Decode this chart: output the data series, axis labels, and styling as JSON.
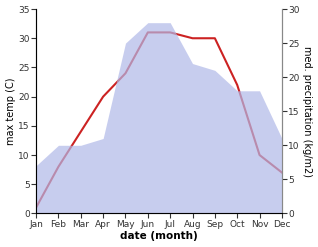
{
  "months": [
    "Jan",
    "Feb",
    "Mar",
    "Apr",
    "May",
    "Jun",
    "Jul",
    "Aug",
    "Sep",
    "Oct",
    "Nov",
    "Dec"
  ],
  "temperature": [
    1,
    8,
    14,
    20,
    24,
    31,
    31,
    30,
    30,
    22,
    10,
    7
  ],
  "precipitation": [
    7,
    10,
    10,
    11,
    25,
    28,
    28,
    22,
    21,
    18,
    18,
    11
  ],
  "temp_color": "#cc2222",
  "precip_color": "#b0b8e8",
  "temp_ylim": [
    0,
    35
  ],
  "precip_ylim": [
    0,
    30
  ],
  "xlabel": "date (month)",
  "ylabel_left": "max temp (C)",
  "ylabel_right": "med. precipitation (kg/m2)",
  "bg_color": "#ffffff",
  "label_fontsize": 7,
  "tick_fontsize": 6.5
}
